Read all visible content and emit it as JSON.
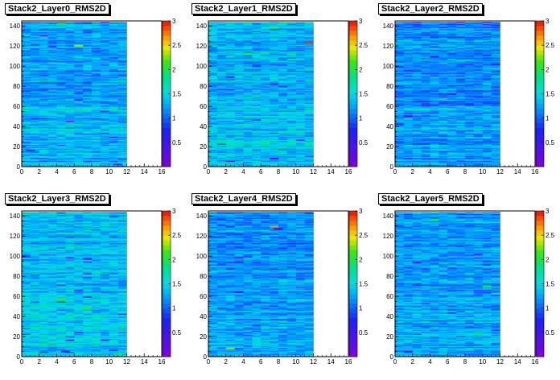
{
  "page": {
    "background": "#ffffff"
  },
  "chart_data": [
    {
      "type": "heatmap",
      "title": "Stack2_Layer0_RMS2D",
      "xlim": [
        0,
        16
      ],
      "ylim": [
        0,
        145
      ],
      "zlim": [
        0,
        3
      ],
      "x_ticks": [
        0,
        2,
        4,
        6,
        8,
        10,
        12,
        14,
        16
      ],
      "y_ticks": [
        0,
        20,
        40,
        60,
        80,
        100,
        120,
        140
      ],
      "z_ticks": [
        0.5,
        1,
        1.5,
        2,
        2.5,
        3
      ],
      "filled_x_range": [
        0,
        12
      ],
      "filled_y_range": [
        0,
        144
      ],
      "dominant_value": 1.25,
      "hot_cells": [
        {
          "x": 6.5,
          "y": 120,
          "v": 2.3
        },
        {
          "x": 4.5,
          "y": 142,
          "v": 2.0
        },
        {
          "x": 11,
          "y": 2,
          "v": 0.5
        },
        {
          "x": 1,
          "y": 16,
          "v": 0.75
        }
      ]
    },
    {
      "type": "heatmap",
      "title": "Stack2_Layer1_RMS2D",
      "xlim": [
        0,
        16
      ],
      "ylim": [
        0,
        145
      ],
      "zlim": [
        0,
        3
      ],
      "x_ticks": [
        0,
        2,
        4,
        6,
        8,
        10,
        12,
        14,
        16
      ],
      "y_ticks": [
        0,
        20,
        40,
        60,
        80,
        100,
        120,
        140
      ],
      "z_ticks": [
        0.5,
        1,
        1.5,
        2,
        2.5,
        3
      ],
      "filled_x_range": [
        0,
        12
      ],
      "filled_y_range": [
        0,
        144
      ],
      "dominant_value": 1.3,
      "hot_cells": [
        {
          "x": 11.5,
          "y": 123,
          "v": 2.9
        },
        {
          "x": 7.5,
          "y": 138,
          "v": 2.2
        },
        {
          "x": 4.5,
          "y": 112,
          "v": 2.1
        },
        {
          "x": 2.5,
          "y": 89,
          "v": 0.5
        },
        {
          "x": 7.5,
          "y": 8,
          "v": 0.1
        }
      ]
    },
    {
      "type": "heatmap",
      "title": "Stack2_Layer2_RMS2D",
      "xlim": [
        0,
        16
      ],
      "ylim": [
        0,
        145
      ],
      "zlim": [
        0,
        3
      ],
      "x_ticks": [
        0,
        2,
        4,
        6,
        8,
        10,
        12,
        14,
        16
      ],
      "y_ticks": [
        0,
        20,
        40,
        60,
        80,
        100,
        120,
        140
      ],
      "z_ticks": [
        0.5,
        1,
        1.5,
        2,
        2.5,
        3
      ],
      "filled_x_range": [
        0,
        12
      ],
      "filled_y_range": [
        0,
        144
      ],
      "dominant_value": 1.15,
      "hot_cells": [
        {
          "x": 1.5,
          "y": 50,
          "v": 0.1
        },
        {
          "x": 3.5,
          "y": 65,
          "v": 0.45
        },
        {
          "x": 6.5,
          "y": 72,
          "v": 0.7
        }
      ]
    },
    {
      "type": "heatmap",
      "title": "Stack2_Layer3_RMS2D",
      "xlim": [
        0,
        16
      ],
      "ylim": [
        0,
        145
      ],
      "zlim": [
        0,
        3
      ],
      "x_ticks": [
        0,
        2,
        4,
        6,
        8,
        10,
        12,
        14,
        16
      ],
      "y_ticks": [
        0,
        20,
        40,
        60,
        80,
        100,
        120,
        140
      ],
      "z_ticks": [
        0.5,
        1,
        1.5,
        2,
        2.5,
        3
      ],
      "filled_x_range": [
        0,
        12
      ],
      "filled_y_range": [
        0,
        144
      ],
      "dominant_value": 1.35,
      "hot_cells": [
        {
          "x": 7.5,
          "y": 97,
          "v": 0.1
        },
        {
          "x": 4.5,
          "y": 57,
          "v": 2.2
        },
        {
          "x": 7.5,
          "y": 48,
          "v": 2.1
        },
        {
          "x": 11,
          "y": 2,
          "v": 2.0
        },
        {
          "x": 5,
          "y": 5,
          "v": 0.6
        }
      ]
    },
    {
      "type": "heatmap",
      "title": "Stack2_Layer4_RMS2D",
      "xlim": [
        0,
        16
      ],
      "ylim": [
        0,
        145
      ],
      "zlim": [
        0,
        3
      ],
      "x_ticks": [
        0,
        2,
        4,
        6,
        8,
        10,
        12,
        14,
        16
      ],
      "y_ticks": [
        0,
        20,
        40,
        60,
        80,
        100,
        120,
        140
      ],
      "z_ticks": [
        0.5,
        1,
        1.5,
        2,
        2.5,
        3
      ],
      "filled_x_range": [
        0,
        12
      ],
      "filled_y_range": [
        0,
        144
      ],
      "dominant_value": 1.2,
      "hot_cells": [
        {
          "x": 7.5,
          "y": 129,
          "v": 2.7
        },
        {
          "x": 8,
          "y": 127,
          "v": 0.5
        },
        {
          "x": 2.5,
          "y": 8,
          "v": 2.3
        },
        {
          "x": 3.5,
          "y": 64,
          "v": 0.6
        }
      ]
    },
    {
      "type": "heatmap",
      "title": "Stack2_Layer5_RMS2D",
      "xlim": [
        0,
        16
      ],
      "ylim": [
        0,
        145
      ],
      "zlim": [
        0,
        3
      ],
      "x_ticks": [
        0,
        2,
        4,
        6,
        8,
        10,
        12,
        14,
        16
      ],
      "y_ticks": [
        0,
        20,
        40,
        60,
        80,
        100,
        120,
        140
      ],
      "z_ticks": [
        0.5,
        1,
        1.5,
        2,
        2.5,
        3
      ],
      "filled_x_range": [
        0,
        12
      ],
      "filled_y_range": [
        0,
        144
      ],
      "dominant_value": 1.2,
      "hot_cells": [
        {
          "x": 4.5,
          "y": 136,
          "v": 2.0
        },
        {
          "x": 10.5,
          "y": 70,
          "v": 2.1
        },
        {
          "x": 1.5,
          "y": 5,
          "v": 0.6
        },
        {
          "x": 9.5,
          "y": 22,
          "v": 2.0
        }
      ]
    }
  ]
}
